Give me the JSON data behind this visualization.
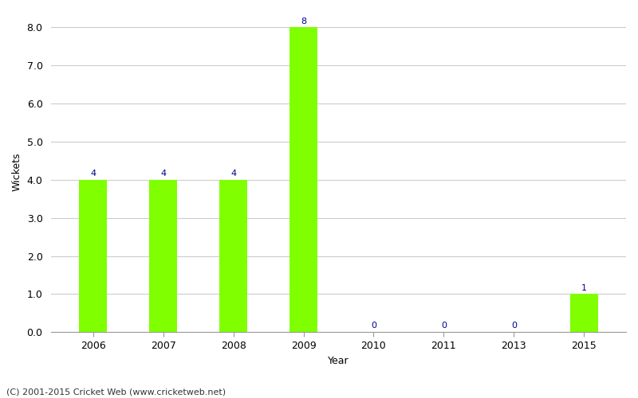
{
  "categories": [
    "2006",
    "2007",
    "2008",
    "2009",
    "2010",
    "2011",
    "2013",
    "2015"
  ],
  "values": [
    4,
    4,
    4,
    8,
    0,
    0,
    0,
    1
  ],
  "bar_color": "#7FFF00",
  "bar_edge_color": "#7FFF00",
  "label_color": "#00008B",
  "xlabel": "Year",
  "ylabel": "Wickets",
  "ylim": [
    0,
    8.4
  ],
  "yticks": [
    0.0,
    1.0,
    2.0,
    3.0,
    4.0,
    5.0,
    6.0,
    7.0,
    8.0
  ],
  "background_color": "#ffffff",
  "grid_color": "#cccccc",
  "footer": "(C) 2001-2015 Cricket Web (www.cricketweb.net)",
  "label_fontsize": 8,
  "axis_fontsize": 9,
  "bar_width": 0.4,
  "spine_color": "#999999",
  "tick_color": "#555555"
}
